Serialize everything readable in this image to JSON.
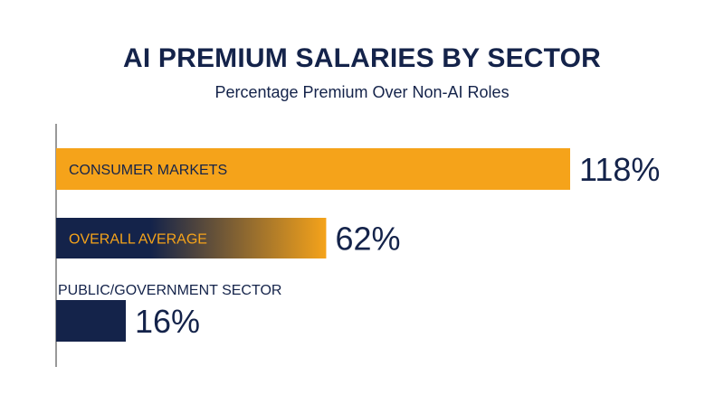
{
  "chart_data": {
    "type": "bar",
    "orientation": "horizontal",
    "title": "AI PREMIUM SALARIES BY SECTOR",
    "subtitle": "Percentage Premium Over Non-AI Roles",
    "categories": [
      "CONSUMER MARKETS",
      "OVERALL AVERAGE",
      "PUBLIC/GOVERNMENT SECTOR"
    ],
    "values": [
      118,
      62,
      16
    ],
    "value_labels": [
      "118%",
      "62%",
      "16%"
    ],
    "xlim": [
      0,
      118
    ],
    "grid": false,
    "legend": "none"
  },
  "colors": {
    "navy": "#14234a",
    "orange": "#f5a31a"
  }
}
